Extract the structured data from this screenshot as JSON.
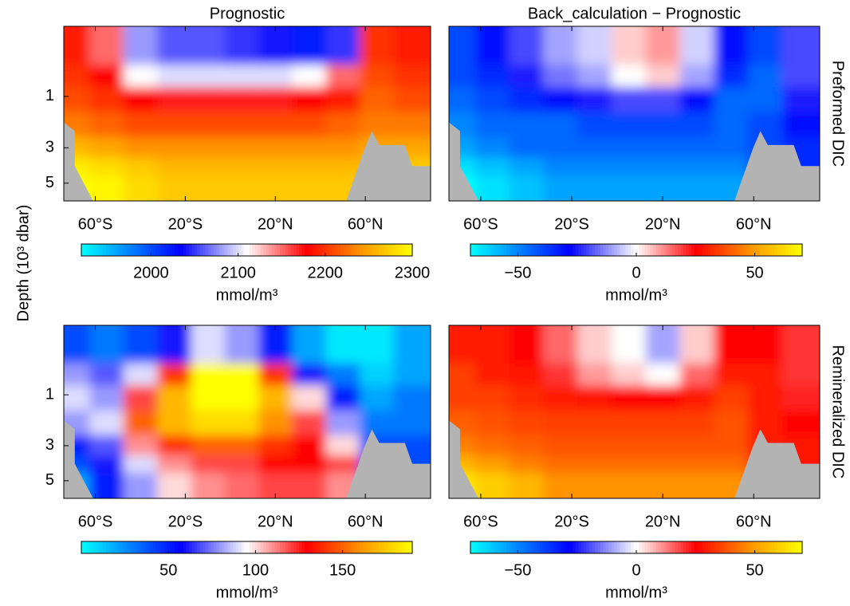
{
  "ylabel": "Depth (10³ dbar)",
  "colormap": [
    [
      0,
      "#00ffff"
    ],
    [
      0.3,
      "#0000ff"
    ],
    [
      0.5,
      "#ffffff"
    ],
    [
      0.68,
      "#ff0000"
    ],
    [
      0.85,
      "#ff9900"
    ],
    [
      1,
      "#ffff00"
    ]
  ],
  "chart_data": [
    {
      "type": "contour",
      "title": "Prognostic",
      "x": [
        -70,
        -55,
        -40,
        -25,
        -10,
        5,
        20,
        35,
        50,
        65,
        80
      ],
      "y": [
        0.1,
        0.5,
        1,
        2,
        3,
        4,
        5
      ],
      "xlim": [
        -74,
        89
      ],
      "xticks": [
        {
          "value": -60,
          "label": "60°S"
        },
        {
          "value": -20,
          "label": "20°S"
        },
        {
          "value": 20,
          "label": "20°N"
        },
        {
          "value": 60,
          "label": "60°N"
        }
      ],
      "ylim": [
        0,
        6.2
      ],
      "yticks": [
        1,
        3,
        5
      ],
      "yscale": "sqrt",
      "y_reversed": true,
      "z": [
        [
          2190,
          2150,
          2080,
          2060,
          2060,
          2050,
          2040,
          2020,
          2050,
          2200,
          2190
        ],
        [
          2200,
          2180,
          2110,
          2100,
          2100,
          2100,
          2100,
          2110,
          2150,
          2210,
          2200
        ],
        [
          2210,
          2200,
          2180,
          2170,
          2170,
          2170,
          2170,
          2180,
          2190,
          2220,
          2210
        ],
        [
          2230,
          2220,
          2210,
          2210,
          2210,
          2210,
          2210,
          2210,
          2220,
          2230,
          2230
        ],
        [
          2260,
          2250,
          2240,
          2240,
          2240,
          2240,
          2240,
          2240,
          2240,
          2250,
          2250
        ],
        [
          2290,
          2280,
          2270,
          2260,
          2260,
          2260,
          2260,
          2260,
          2260,
          2260,
          2270
        ],
        [
          2300,
          2295,
          2280,
          2270,
          2270,
          2270,
          2270,
          2270,
          2270,
          2270,
          2280
        ]
      ],
      "colorbar": {
        "lim": [
          1920,
          2300
        ],
        "ticks": [
          2000,
          2100,
          2200,
          2300
        ],
        "label": "mmol/m³"
      }
    },
    {
      "type": "contour",
      "title": "Back_calculation − Prognostic",
      "row_label": "Preformed DIC",
      "x": [
        -70,
        -55,
        -40,
        -25,
        -10,
        5,
        20,
        35,
        50,
        65,
        80
      ],
      "y": [
        0.1,
        0.5,
        1,
        2,
        3,
        4,
        5
      ],
      "xlim": [
        -74,
        89
      ],
      "xticks": [
        {
          "value": -60,
          "label": "60°S"
        },
        {
          "value": -20,
          "label": "20°S"
        },
        {
          "value": 20,
          "label": "20°N"
        },
        {
          "value": 60,
          "label": "60°N"
        }
      ],
      "ylim": [
        0,
        6.2
      ],
      "yscale": "sqrt",
      "y_reversed": true,
      "z": [
        [
          -40,
          -30,
          -20,
          -10,
          -5,
          5,
          10,
          -5,
          -30,
          -40,
          -20
        ],
        [
          -40,
          -35,
          -25,
          -15,
          -10,
          0,
          5,
          -10,
          -35,
          -45,
          -20
        ],
        [
          -45,
          -40,
          -35,
          -30,
          -25,
          -20,
          -20,
          -30,
          -45,
          -45,
          -25
        ],
        [
          -50,
          -45,
          -45,
          -45,
          -40,
          -40,
          -40,
          -40,
          -45,
          -40,
          -30
        ],
        [
          -55,
          -50,
          -45,
          -45,
          -45,
          -45,
          -45,
          -45,
          -45,
          -40,
          -35
        ],
        [
          -65,
          -60,
          -55,
          -50,
          -50,
          -50,
          -50,
          -50,
          -50,
          -40,
          -35
        ],
        [
          -70,
          -65,
          -60,
          -55,
          -55,
          -55,
          -55,
          -55,
          -55,
          -40,
          -35
        ]
      ],
      "colorbar": {
        "lim": [
          -70,
          70
        ],
        "ticks": [
          {
            "value": -50,
            "label": "−50"
          },
          0,
          50
        ],
        "label": "mmol/m³"
      }
    },
    {
      "type": "contour",
      "x": [
        -70,
        -55,
        -40,
        -25,
        -10,
        5,
        20,
        35,
        50,
        65,
        80
      ],
      "y": [
        0.1,
        0.5,
        1,
        2,
        3,
        4,
        5
      ],
      "xlim": [
        -74,
        89
      ],
      "xticks": [
        {
          "value": -60,
          "label": "60°S"
        },
        {
          "value": -20,
          "label": "20°S"
        },
        {
          "value": 20,
          "label": "20°N"
        },
        {
          "value": 60,
          "label": "60°N"
        }
      ],
      "ylim": [
        0,
        6.2
      ],
      "yticks": [
        1,
        3,
        5
      ],
      "yscale": "sqrt",
      "y_reversed": true,
      "z": [
        [
          40,
          30,
          40,
          60,
          90,
          80,
          50,
          20,
          5,
          5,
          20
        ],
        [
          80,
          70,
          90,
          140,
          190,
          190,
          140,
          60,
          30,
          10,
          20
        ],
        [
          90,
          80,
          120,
          170,
          190,
          190,
          170,
          100,
          50,
          20,
          30
        ],
        [
          80,
          90,
          150,
          170,
          180,
          180,
          160,
          120,
          80,
          30,
          30
        ],
        [
          50,
          70,
          110,
          140,
          150,
          150,
          140,
          130,
          100,
          40,
          40
        ],
        [
          40,
          60,
          90,
          110,
          120,
          120,
          130,
          130,
          120,
          40,
          40
        ],
        [
          20,
          50,
          80,
          100,
          110,
          115,
          120,
          120,
          110,
          40,
          40
        ]
      ],
      "colorbar": {
        "lim": [
          0,
          190
        ],
        "ticks": [
          50,
          100,
          150
        ],
        "label": "mmol/m³"
      }
    },
    {
      "type": "contour",
      "row_label": "Remineralized DIC",
      "x": [
        -70,
        -55,
        -40,
        -25,
        -10,
        5,
        20,
        35,
        50,
        65,
        80
      ],
      "y": [
        0.1,
        0.5,
        1,
        2,
        3,
        4,
        5
      ],
      "xlim": [
        -74,
        89
      ],
      "xticks": [
        {
          "value": -60,
          "label": "60°S"
        },
        {
          "value": -20,
          "label": "20°S"
        },
        {
          "value": 20,
          "label": "20°N"
        },
        {
          "value": 60,
          "label": "60°N"
        }
      ],
      "ylim": [
        0,
        6.2
      ],
      "yscale": "sqrt",
      "y_reversed": true,
      "z": [
        [
          30,
          30,
          25,
          15,
          5,
          0,
          -10,
          5,
          25,
          25,
          20
        ],
        [
          35,
          30,
          28,
          20,
          10,
          5,
          0,
          15,
          30,
          30,
          20
        ],
        [
          35,
          35,
          32,
          30,
          28,
          25,
          25,
          30,
          35,
          30,
          22
        ],
        [
          40,
          38,
          36,
          35,
          35,
          35,
          35,
          35,
          38,
          30,
          25
        ],
        [
          45,
          42,
          40,
          38,
          38,
          38,
          38,
          38,
          38,
          30,
          28
        ],
        [
          55,
          50,
          45,
          42,
          42,
          42,
          42,
          42,
          42,
          30,
          28
        ],
        [
          65,
          60,
          55,
          48,
          48,
          48,
          48,
          48,
          48,
          30,
          28
        ]
      ],
      "colorbar": {
        "lim": [
          -70,
          70
        ],
        "ticks": [
          {
            "value": -50,
            "label": "−50"
          },
          0,
          50
        ],
        "label": "mmol/m³"
      }
    }
  ]
}
